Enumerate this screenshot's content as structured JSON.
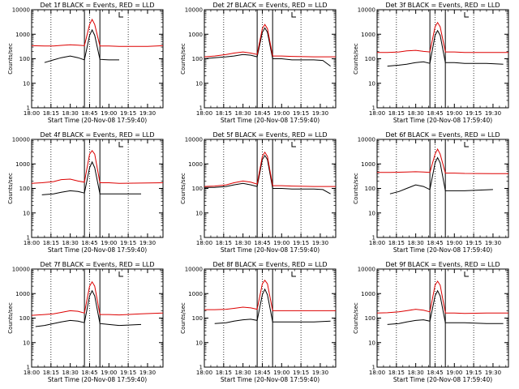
{
  "figure": {
    "background": "#ffffff",
    "black_color": "#000000",
    "red_color": "#dd0000"
  },
  "chart_data": [
    {
      "type": "line",
      "title": "Det 1f BLACK = Events, RED = LLD",
      "xlabel": "Start Time (20-Nov-08 17:59:40)",
      "ylabel": "Counts/sec",
      "y_scale": "log",
      "ylim": [
        1,
        10000
      ],
      "xlim": [
        1080,
        1182
      ],
      "x_ticks": [
        "18:00",
        "18:15",
        "18:30",
        "18:45",
        "19:00",
        "19:15",
        "19:30"
      ],
      "y_ticks": [
        "1",
        "10",
        "100",
        "1000",
        "10000"
      ],
      "vlines_dotted": [
        1095,
        1125,
        1155
      ],
      "vlines_solid": [
        1121,
        1133
      ],
      "series": [
        {
          "color": "#000000",
          "x": [
            1090,
            1097,
            1103,
            1110,
            1116,
            1121,
            1125,
            1127,
            1129,
            1133,
            1140,
            1148
          ],
          "y": [
            70,
            90,
            110,
            130,
            110,
            90,
            900,
            1500,
            900,
            95,
            90,
            90
          ]
        },
        {
          "color": "#dd0000",
          "x": [
            1080,
            1090,
            1097,
            1103,
            1110,
            1116,
            1121,
            1125,
            1127,
            1129,
            1133,
            1140,
            1148,
            1170,
            1182
          ],
          "y": [
            340,
            330,
            330,
            350,
            370,
            360,
            340,
            2500,
            4000,
            2500,
            330,
            330,
            320,
            320,
            340
          ]
        }
      ]
    },
    {
      "type": "line",
      "title": "Det 2f BLACK = Events, RED = LLD",
      "xlabel": "Start Time (20-Nov-08 17:59:40)",
      "ylabel": "Counts/sec",
      "y_scale": "log",
      "ylim": [
        1,
        10000
      ],
      "xlim": [
        1080,
        1182
      ],
      "x_ticks": [
        "18:00",
        "18:15",
        "18:30",
        "18:45",
        "19:00",
        "19:15",
        "19:30"
      ],
      "y_ticks": [
        "1",
        "10",
        "100",
        "1000",
        "10000"
      ],
      "vlines_dotted": [
        1095,
        1125,
        1155
      ],
      "vlines_solid": [
        1121,
        1133
      ],
      "series": [
        {
          "color": "#000000",
          "x": [
            1080,
            1088,
            1097,
            1103,
            1110,
            1116,
            1121,
            1125,
            1127,
            1129,
            1133,
            1140,
            1148,
            1165,
            1172,
            1178
          ],
          "y": [
            100,
            110,
            120,
            130,
            150,
            140,
            120,
            1200,
            1800,
            1200,
            100,
            100,
            90,
            90,
            85,
            50
          ]
        },
        {
          "color": "#dd0000",
          "x": [
            1080,
            1088,
            1097,
            1103,
            1110,
            1116,
            1121,
            1125,
            1127,
            1129,
            1133,
            1140,
            1148,
            1165,
            1182
          ],
          "y": [
            120,
            130,
            150,
            170,
            190,
            170,
            150,
            1700,
            2500,
            1700,
            130,
            130,
            125,
            120,
            120
          ]
        }
      ]
    },
    {
      "type": "line",
      "title": "Det 3f BLACK = Events, RED = LLD",
      "xlabel": "Start Time (20-Nov-08 17:59:40)",
      "ylabel": "Counts/sec",
      "y_scale": "log",
      "ylim": [
        1,
        10000
      ],
      "xlim": [
        1080,
        1182
      ],
      "x_ticks": [
        "18:00",
        "18:15",
        "18:30",
        "18:45",
        "19:00",
        "19:15",
        "19:30"
      ],
      "y_ticks": [
        "1",
        "10",
        "100",
        "1000",
        "10000"
      ],
      "vlines_dotted": [
        1095,
        1125,
        1155
      ],
      "vlines_solid": [
        1121,
        1133
      ],
      "series": [
        {
          "color": "#000000",
          "x": [
            1088,
            1097,
            1103,
            1110,
            1116,
            1121,
            1125,
            1127,
            1129,
            1133,
            1140,
            1148,
            1165,
            1178
          ],
          "y": [
            50,
            55,
            60,
            70,
            75,
            65,
            900,
            1400,
            900,
            70,
            70,
            65,
            65,
            60
          ]
        },
        {
          "color": "#dd0000",
          "x": [
            1080,
            1088,
            1097,
            1103,
            1110,
            1116,
            1121,
            1125,
            1127,
            1129,
            1133,
            1140,
            1148,
            1165,
            1182
          ],
          "y": [
            180,
            180,
            190,
            210,
            220,
            200,
            190,
            2000,
            3000,
            2000,
            190,
            190,
            180,
            180,
            180
          ]
        }
      ]
    },
    {
      "type": "line",
      "title": "Det 4f BLACK = Events, RED = LLD",
      "xlabel": "Start Time (20-Nov-08 17:59:40)",
      "ylabel": "Counts/sec",
      "y_scale": "log",
      "ylim": [
        1,
        10000
      ],
      "xlim": [
        1080,
        1182
      ],
      "x_ticks": [
        "18:00",
        "18:15",
        "18:30",
        "18:45",
        "19:00",
        "19:15",
        "19:30"
      ],
      "y_ticks": [
        "1",
        "10",
        "100",
        "1000",
        "10000"
      ],
      "vlines_dotted": [
        1095,
        1125,
        1155
      ],
      "vlines_solid": [
        1121,
        1133
      ],
      "series": [
        {
          "color": "#000000",
          "x": [
            1088,
            1097,
            1103,
            1110,
            1116,
            1121,
            1125,
            1127,
            1129,
            1133,
            1140,
            1148,
            1165
          ],
          "y": [
            55,
            60,
            70,
            80,
            75,
            65,
            700,
            1200,
            700,
            60,
            60,
            60,
            60
          ]
        },
        {
          "color": "#dd0000",
          "x": [
            1080,
            1088,
            1097,
            1103,
            1110,
            1116,
            1121,
            1125,
            1127,
            1129,
            1133,
            1140,
            1148,
            1165,
            1182
          ],
          "y": [
            160,
            170,
            190,
            230,
            240,
            200,
            180,
            2500,
            3500,
            2500,
            170,
            170,
            160,
            165,
            170
          ]
        }
      ]
    },
    {
      "type": "line",
      "title": "Det 5f BLACK = Events, RED = LLD",
      "xlabel": "Start Time (20-Nov-08 17:59:40)",
      "ylabel": "Counts/sec",
      "y_scale": "log",
      "ylim": [
        1,
        10000
      ],
      "xlim": [
        1080,
        1182
      ],
      "x_ticks": [
        "18:00",
        "18:15",
        "18:30",
        "18:45",
        "19:00",
        "19:15",
        "19:30"
      ],
      "y_ticks": [
        "1",
        "10",
        "100",
        "1000",
        "10000"
      ],
      "vlines_dotted": [
        1095,
        1125,
        1155
      ],
      "vlines_solid": [
        1121,
        1133
      ],
      "series": [
        {
          "color": "#000000",
          "x": [
            1080,
            1088,
            1097,
            1103,
            1110,
            1116,
            1121,
            1125,
            1127,
            1129,
            1133,
            1140,
            1148,
            1165,
            1172,
            1178
          ],
          "y": [
            110,
            110,
            120,
            140,
            160,
            140,
            120,
            1500,
            2200,
            1500,
            100,
            100,
            95,
            95,
            90,
            60
          ]
        },
        {
          "color": "#dd0000",
          "x": [
            1080,
            1088,
            1097,
            1103,
            1110,
            1116,
            1121,
            1125,
            1127,
            1129,
            1133,
            1140,
            1148,
            1165,
            1182
          ],
          "y": [
            120,
            125,
            140,
            170,
            200,
            180,
            150,
            2000,
            3000,
            2000,
            130,
            130,
            125,
            120,
            120
          ]
        }
      ]
    },
    {
      "type": "line",
      "title": "Det 6f BLACK = Events, RED = LLD",
      "xlabel": "Start Time (20-Nov-08 17:59:40)",
      "ylabel": "Counts/sec",
      "y_scale": "log",
      "ylim": [
        1,
        10000
      ],
      "xlim": [
        1080,
        1182
      ],
      "x_ticks": [
        "18:00",
        "18:15",
        "18:30",
        "18:45",
        "19:00",
        "19:15",
        "19:30"
      ],
      "y_ticks": [
        "1",
        "10",
        "100",
        "1000",
        "10000"
      ],
      "vlines_dotted": [
        1095,
        1125,
        1155
      ],
      "vlines_solid": [
        1121,
        1133
      ],
      "series": [
        {
          "color": "#000000",
          "x": [
            1090,
            1097,
            1103,
            1110,
            1116,
            1121,
            1125,
            1127,
            1129,
            1133,
            1140,
            1148,
            1170
          ],
          "y": [
            60,
            75,
            100,
            140,
            120,
            90,
            1100,
            1800,
            1100,
            80,
            80,
            80,
            90
          ]
        },
        {
          "color": "#dd0000",
          "x": [
            1080,
            1090,
            1097,
            1103,
            1110,
            1116,
            1121,
            1125,
            1127,
            1129,
            1133,
            1140,
            1148,
            1170,
            1182
          ],
          "y": [
            450,
            450,
            460,
            470,
            480,
            470,
            450,
            2500,
            4000,
            2500,
            420,
            420,
            410,
            400,
            400
          ]
        }
      ]
    },
    {
      "type": "line",
      "title": "Det 7f BLACK = Events, RED = LLD",
      "xlabel": "Start Time (20-Nov-08 17:59:40)",
      "ylabel": "Counts/sec",
      "y_scale": "log",
      "ylim": [
        1,
        10000
      ],
      "xlim": [
        1080,
        1182
      ],
      "x_ticks": [
        "18:00",
        "18:15",
        "18:30",
        "18:45",
        "19:00",
        "19:15",
        "19:30"
      ],
      "y_ticks": [
        "1",
        "10",
        "100",
        "1000",
        "10000"
      ],
      "vlines_dotted": [
        1095,
        1125,
        1155
      ],
      "vlines_solid": [
        1121,
        1133
      ],
      "series": [
        {
          "color": "#000000",
          "x": [
            1083,
            1090,
            1097,
            1103,
            1110,
            1116,
            1121,
            1125,
            1127,
            1129,
            1133,
            1140,
            1148,
            1165
          ],
          "y": [
            45,
            50,
            60,
            70,
            80,
            75,
            65,
            800,
            1300,
            800,
            60,
            55,
            50,
            55
          ]
        },
        {
          "color": "#dd0000",
          "x": [
            1080,
            1090,
            1097,
            1103,
            1110,
            1116,
            1121,
            1125,
            1127,
            1129,
            1133,
            1140,
            1148,
            1165,
            1182
          ],
          "y": [
            130,
            140,
            150,
            170,
            200,
            190,
            160,
            2000,
            3000,
            2000,
            140,
            140,
            135,
            150,
            160
          ]
        }
      ]
    },
    {
      "type": "line",
      "title": "Det 8f BLACK = Events, RED = LLD",
      "xlabel": "Start Time (20-Nov-08 17:59:40)",
      "ylabel": "Counts/sec",
      "y_scale": "log",
      "ylim": [
        1,
        10000
      ],
      "xlim": [
        1080,
        1182
      ],
      "x_ticks": [
        "18:00",
        "18:15",
        "18:30",
        "18:45",
        "19:00",
        "19:15",
        "19:30"
      ],
      "y_ticks": [
        "1",
        "10",
        "100",
        "1000",
        "10000"
      ],
      "vlines_dotted": [
        1095,
        1125,
        1155
      ],
      "vlines_solid": [
        1121,
        1133
      ],
      "series": [
        {
          "color": "#000000",
          "x": [
            1088,
            1097,
            1103,
            1110,
            1116,
            1121,
            1125,
            1127,
            1129,
            1133,
            1140,
            1148,
            1165,
            1178
          ],
          "y": [
            60,
            65,
            75,
            85,
            90,
            80,
            900,
            1500,
            900,
            70,
            70,
            70,
            70,
            75
          ]
        },
        {
          "color": "#dd0000",
          "x": [
            1080,
            1088,
            1097,
            1103,
            1110,
            1116,
            1121,
            1125,
            1127,
            1129,
            1133,
            1140,
            1148,
            1165,
            1182
          ],
          "y": [
            220,
            220,
            230,
            250,
            280,
            260,
            230,
            2500,
            3500,
            2500,
            200,
            200,
            200,
            200,
            200
          ]
        }
      ]
    },
    {
      "type": "line",
      "title": "Det 9f BLACK = Events, RED = LLD",
      "xlabel": "Start Time (20-Nov-08 17:59:40)",
      "ylabel": "Counts/sec",
      "y_scale": "log",
      "ylim": [
        1,
        10000
      ],
      "xlim": [
        1080,
        1182
      ],
      "x_ticks": [
        "18:00",
        "18:15",
        "18:30",
        "18:45",
        "19:00",
        "19:15",
        "19:30"
      ],
      "y_ticks": [
        "1",
        "10",
        "100",
        "1000",
        "10000"
      ],
      "vlines_dotted": [
        1095,
        1125,
        1155
      ],
      "vlines_solid": [
        1121,
        1133
      ],
      "series": [
        {
          "color": "#000000",
          "x": [
            1088,
            1097,
            1103,
            1110,
            1116,
            1121,
            1125,
            1127,
            1129,
            1133,
            1140,
            1148,
            1165,
            1178
          ],
          "y": [
            55,
            60,
            70,
            80,
            85,
            75,
            800,
            1300,
            800,
            65,
            65,
            65,
            60,
            60
          ]
        },
        {
          "color": "#dd0000",
          "x": [
            1080,
            1088,
            1097,
            1103,
            1110,
            1116,
            1121,
            1125,
            1127,
            1129,
            1133,
            1140,
            1148,
            1165,
            1182
          ],
          "y": [
            160,
            165,
            180,
            200,
            230,
            210,
            180,
            2200,
            3200,
            2200,
            160,
            160,
            155,
            160,
            160
          ]
        }
      ]
    }
  ]
}
